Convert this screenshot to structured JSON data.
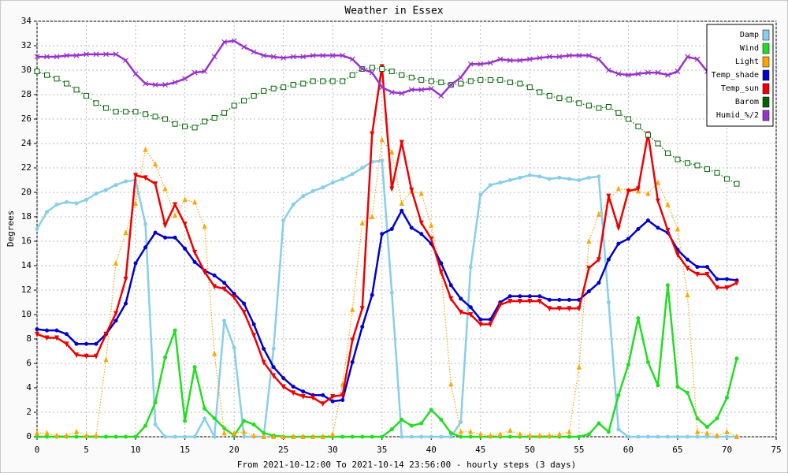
{
  "chart_data": {
    "type": "line",
    "title": "Weather in Essex",
    "xlabel": "From 2021-10-12:00 To 2021-10-14 23:56:00 - hourly steps (3 days)",
    "ylabel": "Degrees",
    "x": [
      0,
      1,
      2,
      3,
      4,
      5,
      6,
      7,
      8,
      9,
      10,
      11,
      12,
      13,
      14,
      15,
      16,
      17,
      18,
      19,
      20,
      21,
      22,
      23,
      24,
      25,
      26,
      27,
      28,
      29,
      30,
      31,
      32,
      33,
      34,
      35,
      36,
      37,
      38,
      39,
      40,
      41,
      42,
      43,
      44,
      45,
      46,
      47,
      48,
      49,
      50,
      51,
      52,
      53,
      54,
      55,
      56,
      57,
      58,
      59,
      60,
      61,
      62,
      63,
      64,
      65,
      66,
      67,
      68,
      69,
      70,
      71
    ],
    "xlim": [
      0,
      75
    ],
    "xticks": [
      0,
      5,
      10,
      15,
      20,
      25,
      30,
      35,
      40,
      45,
      50,
      55,
      60,
      65,
      70,
      75
    ],
    "ylim": [
      0,
      34
    ],
    "yticks": [
      0,
      2,
      4,
      6,
      8,
      10,
      12,
      14,
      16,
      18,
      20,
      22,
      24,
      26,
      28,
      30,
      32,
      34
    ],
    "grid": true,
    "legend": "upper right",
    "series": [
      {
        "name": "Damp",
        "color": "#87ceeb",
        "marker": "circle",
        "dotted": false,
        "values": [
          17,
          18.4,
          19,
          19.2,
          19.1,
          19.4,
          19.9,
          20.2,
          20.6,
          20.9,
          21,
          17.4,
          1,
          0,
          0,
          0,
          0,
          1.5,
          0,
          9.5,
          7.3,
          0,
          0,
          0,
          7.2,
          17.7,
          19,
          19.7,
          20.1,
          20.4,
          20.8,
          21.1,
          21.5,
          22,
          22.5,
          22.6,
          11.8,
          0,
          0,
          0,
          0,
          0,
          0,
          1.2,
          13.9,
          19.8,
          20.6,
          20.8,
          21,
          21.2,
          21.4,
          21.3,
          21.1,
          21.2,
          21.1,
          21,
          21.2,
          21.3,
          11,
          0.6,
          0,
          0,
          0,
          0,
          0,
          0,
          0,
          0,
          0,
          0,
          0,
          0
        ]
      },
      {
        "name": "Wind",
        "color": "#22dd22",
        "marker": "circle",
        "dotted": false,
        "values": [
          0,
          0,
          0,
          0,
          0,
          0,
          0,
          0,
          0,
          0,
          0,
          0.9,
          2.8,
          6.5,
          8.7,
          1.3,
          5.7,
          2.3,
          1.5,
          0.7,
          0.1,
          1.3,
          1,
          0.3,
          0.1,
          0,
          0,
          0,
          0,
          0,
          0,
          0,
          0,
          0,
          0,
          0,
          0.6,
          1.4,
          0.9,
          1.1,
          2.2,
          1.4,
          0.3,
          0,
          0,
          0,
          0,
          0,
          0,
          0,
          0,
          0,
          0,
          0,
          0,
          0,
          0.2,
          1.1,
          0.4,
          3.4,
          5.9,
          9.7,
          6.1,
          4.2,
          12.4,
          4.1,
          3.6,
          1.5,
          0.8,
          1.5,
          3.2,
          6.4
        ]
      },
      {
        "name": "Light",
        "color": "#ffa500",
        "marker": "triangle",
        "dotted": true,
        "values": [
          0.3,
          0.3,
          0.1,
          0.1,
          0.4,
          0.1,
          0.1,
          6.3,
          14.2,
          16.7,
          19.1,
          23.5,
          22.3,
          20.3,
          18.1,
          19.4,
          19.2,
          17.2,
          6.8,
          0.3,
          0.3,
          0.4,
          0.1,
          0,
          0,
          0,
          0,
          0,
          0,
          0,
          0.2,
          4.3,
          10.4,
          17.5,
          18,
          24.3,
          23.3,
          19.1,
          20.1,
          19.9,
          17.3,
          13.5,
          4.3,
          0.4,
          0.4,
          0.2,
          0.1,
          0.2,
          0.5,
          0.2,
          0.1,
          0.1,
          0.1,
          0.2,
          0.4,
          5.7,
          16,
          18.2,
          19.3,
          20.3,
          20.2,
          20.1,
          19.9,
          20.8,
          19,
          17,
          11.6,
          0.4,
          0.3,
          0.1,
          0.4,
          0
        ]
      },
      {
        "name": "Temp_shade",
        "color": "#0000cc",
        "marker": "circle",
        "dotted": false,
        "values": [
          8.8,
          8.7,
          8.7,
          8.4,
          7.6,
          7.6,
          7.6,
          8.4,
          9.5,
          10.9,
          14.2,
          15.5,
          16.7,
          16.3,
          16.3,
          15.4,
          14.3,
          13.6,
          13.2,
          12.6,
          11.7,
          10.9,
          9.2,
          7.2,
          5.7,
          4.8,
          4.1,
          3.7,
          3.4,
          3.4,
          2.9,
          3,
          6.1,
          9,
          11.6,
          16.6,
          17,
          18.5,
          17.1,
          16.6,
          15.8,
          14.2,
          12.4,
          11.3,
          10.6,
          9.6,
          9.6,
          11,
          11.5,
          11.5,
          11.5,
          11.5,
          11.2,
          11.2,
          11.2,
          11.2,
          11.9,
          12.6,
          14.5,
          15.8,
          16.2,
          17,
          17.7,
          17.1,
          16.7,
          15.3,
          14.5,
          13.9,
          13.9,
          12.9,
          12.9,
          12.8
        ]
      },
      {
        "name": "Temp_sun",
        "color": "#ee0000",
        "marker": "triangle-down",
        "dotted": false,
        "values": [
          8.4,
          8.1,
          8.1,
          7.6,
          6.7,
          6.6,
          6.6,
          8.4,
          10.1,
          12.9,
          21.4,
          21.2,
          20.7,
          17.3,
          19,
          17.4,
          15.1,
          13.5,
          12.3,
          12.1,
          11.4,
          10.2,
          8.3,
          6.1,
          5,
          4.1,
          3.6,
          3.3,
          3.2,
          2.7,
          3.3,
          3.4,
          7.9,
          10.5,
          24.8,
          30.3,
          20.3,
          24.1,
          20.2,
          17.5,
          16.2,
          13.5,
          11.3,
          10.2,
          10,
          9.2,
          9.2,
          10.8,
          11.1,
          11.1,
          11.1,
          11.1,
          10.5,
          10.5,
          10.5,
          10.5,
          13.8,
          14.5,
          19.7,
          17.1,
          20.1,
          20.3,
          24.8,
          19.3,
          16.9,
          14.9,
          13.8,
          13.3,
          13.3,
          12.2,
          12.2,
          12.6
        ]
      },
      {
        "name": "Barom",
        "color": "#006400",
        "marker": "square",
        "dotted": true,
        "values": [
          29.9,
          29.6,
          29.3,
          28.9,
          28.4,
          27.9,
          27.3,
          26.9,
          26.6,
          26.6,
          26.6,
          26.4,
          26.2,
          26,
          25.6,
          25.4,
          25.3,
          25.8,
          26.1,
          26.5,
          27.1,
          27.5,
          27.9,
          28.3,
          28.5,
          28.6,
          28.8,
          28.9,
          29.1,
          29.1,
          29.1,
          29.1,
          29.6,
          30.1,
          30.2,
          30.1,
          29.9,
          29.6,
          29.4,
          29.2,
          29.1,
          29,
          28.8,
          28.9,
          29.1,
          29.2,
          29.2,
          29.2,
          29,
          28.9,
          28.6,
          28.2,
          27.9,
          27.7,
          27.6,
          27.3,
          27.1,
          26.9,
          27,
          26.5,
          26,
          25.4,
          24.7,
          24,
          23.2,
          22.7,
          22.4,
          22.2,
          21.9,
          21.6,
          21.1,
          20.7
        ]
      },
      {
        "name": "Humid_%/2",
        "color": "#9932cc",
        "marker": "cross",
        "dotted": false,
        "values": [
          31.1,
          31.1,
          31.1,
          31.2,
          31.2,
          31.3,
          31.3,
          31.3,
          31.3,
          30.8,
          29.7,
          28.9,
          28.8,
          28.8,
          29,
          29.3,
          29.8,
          29.9,
          31.1,
          32.3,
          32.4,
          31.9,
          31.5,
          31.2,
          31.1,
          31,
          31.1,
          31.1,
          31.2,
          31.2,
          31.2,
          31.2,
          30.9,
          30.1,
          29.8,
          28.6,
          28.2,
          28.1,
          28.4,
          28.4,
          28.5,
          27.9,
          28.8,
          29.4,
          30.5,
          30.5,
          30.6,
          30.9,
          30.8,
          30.8,
          30.9,
          31,
          31.1,
          31.1,
          31.2,
          31.2,
          31.2,
          30.9,
          30,
          29.7,
          29.6,
          29.7,
          29.8,
          29.8,
          29.6,
          29.9,
          31.1,
          30.9,
          29.9,
          29.8,
          29.8,
          29.8
        ]
      }
    ]
  }
}
